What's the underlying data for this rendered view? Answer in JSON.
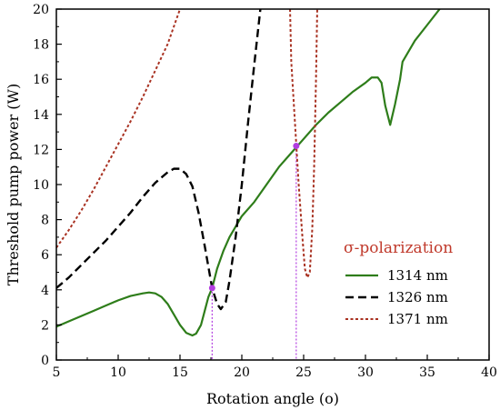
{
  "chart_data": {
    "type": "line",
    "xlabel": "Rotation angle (o)",
    "ylabel": "Threshold pump power (W)",
    "xlim": [
      5,
      40
    ],
    "ylim": [
      0,
      20
    ],
    "xticks": [
      5,
      10,
      15,
      20,
      25,
      30,
      35,
      40
    ],
    "yticks": [
      0,
      2,
      4,
      6,
      8,
      10,
      12,
      14,
      16,
      18,
      20
    ],
    "xtick_labels": [
      "5",
      "10",
      "15",
      "20",
      "25",
      "30",
      "35",
      "40"
    ],
    "ytick_labels": [
      "0",
      "2",
      "4",
      "6",
      "8",
      "10",
      "12",
      "14",
      "16",
      "18",
      "20"
    ],
    "grid": false,
    "legend": {
      "placement": "bottom-right",
      "title": "σ-polarization",
      "title_color": "#c0392b"
    },
    "series": [
      {
        "name": "1314 nm",
        "color": "#2e7d1a",
        "style": "solid",
        "points": [
          [
            5,
            1.9
          ],
          [
            6,
            2.2
          ],
          [
            7,
            2.5
          ],
          [
            8,
            2.8
          ],
          [
            9,
            3.1
          ],
          [
            10,
            3.4
          ],
          [
            11,
            3.65
          ],
          [
            12,
            3.8
          ],
          [
            12.5,
            3.85
          ],
          [
            13,
            3.8
          ],
          [
            13.5,
            3.6
          ],
          [
            14,
            3.2
          ],
          [
            14.5,
            2.6
          ],
          [
            15,
            2.0
          ],
          [
            15.5,
            1.55
          ],
          [
            16,
            1.4
          ],
          [
            16.3,
            1.5
          ],
          [
            16.7,
            2.0
          ],
          [
            17,
            2.8
          ],
          [
            17.3,
            3.6
          ],
          [
            17.6,
            4.1
          ],
          [
            18,
            5.2
          ],
          [
            18.5,
            6.2
          ],
          [
            19,
            7.0
          ],
          [
            19.5,
            7.6
          ],
          [
            20,
            8.2
          ],
          [
            21,
            9.0
          ],
          [
            22,
            10.0
          ],
          [
            23,
            11.0
          ],
          [
            24,
            11.8
          ],
          [
            25,
            12.6
          ],
          [
            26,
            13.4
          ],
          [
            27,
            14.1
          ],
          [
            28,
            14.7
          ],
          [
            29,
            15.3
          ],
          [
            30,
            15.8
          ],
          [
            30.5,
            16.1
          ],
          [
            31,
            16.1
          ],
          [
            31.3,
            15.8
          ],
          [
            31.6,
            14.5
          ],
          [
            32,
            13.4
          ],
          [
            32.4,
            14.6
          ],
          [
            32.8,
            16.0
          ],
          [
            33,
            17.0
          ],
          [
            34,
            18.2
          ],
          [
            35,
            19.1
          ],
          [
            36,
            20.0
          ]
        ]
      },
      {
        "name": "1326 nm",
        "color": "#000000",
        "style": "dashed",
        "points": [
          [
            5,
            4.1
          ],
          [
            6,
            4.7
          ],
          [
            7,
            5.4
          ],
          [
            8,
            6.1
          ],
          [
            9,
            6.8
          ],
          [
            10,
            7.6
          ],
          [
            11,
            8.4
          ],
          [
            12,
            9.3
          ],
          [
            13,
            10.1
          ],
          [
            14,
            10.7
          ],
          [
            14.5,
            10.9
          ],
          [
            15,
            10.9
          ],
          [
            15.5,
            10.6
          ],
          [
            16,
            9.9
          ],
          [
            16.5,
            8.4
          ],
          [
            17,
            6.5
          ],
          [
            17.3,
            5.3
          ],
          [
            17.6,
            4.1
          ],
          [
            18,
            3.2
          ],
          [
            18.3,
            2.9
          ],
          [
            18.7,
            3.3
          ],
          [
            19,
            4.5
          ],
          [
            19.5,
            7.0
          ],
          [
            20,
            10.0
          ],
          [
            20.5,
            13.5
          ],
          [
            21,
            16.8
          ],
          [
            21.5,
            20.0
          ]
        ]
      },
      {
        "name": "1371 nm",
        "color": "#a93222",
        "style": "dotted",
        "points": [
          [
            5,
            6.4
          ],
          [
            6,
            7.4
          ],
          [
            7,
            8.5
          ],
          [
            8,
            9.7
          ],
          [
            9,
            11.0
          ],
          [
            10,
            12.3
          ],
          [
            11,
            13.6
          ],
          [
            12,
            15.0
          ],
          [
            13,
            16.5
          ],
          [
            14,
            18.0
          ],
          [
            14.5,
            19.0
          ],
          [
            15,
            20.0
          ]
        ]
      },
      {
        "name": "1371 nm",
        "color": "#a93222",
        "style": "dotted",
        "points": [
          [
            23.9,
            20.0
          ],
          [
            24.0,
            17.0
          ],
          [
            24.3,
            13.5
          ],
          [
            24.6,
            10.0
          ],
          [
            24.9,
            7.0
          ],
          [
            25.1,
            5.2
          ],
          [
            25.3,
            4.7
          ],
          [
            25.5,
            5.0
          ],
          [
            25.7,
            7.5
          ],
          [
            25.85,
            11.0
          ],
          [
            26.0,
            16.0
          ],
          [
            26.1,
            20.0
          ]
        ]
      }
    ],
    "markers": [
      {
        "x": 17.6,
        "y": 4.1,
        "color": "#b23de0"
      },
      {
        "x": 24.4,
        "y": 12.2,
        "color": "#b23de0"
      }
    ],
    "vlines": [
      {
        "x": 17.6,
        "y_top": 4.1,
        "color": "#b23de0"
      },
      {
        "x": 24.4,
        "y_top": 12.2,
        "color": "#b23de0"
      }
    ]
  }
}
